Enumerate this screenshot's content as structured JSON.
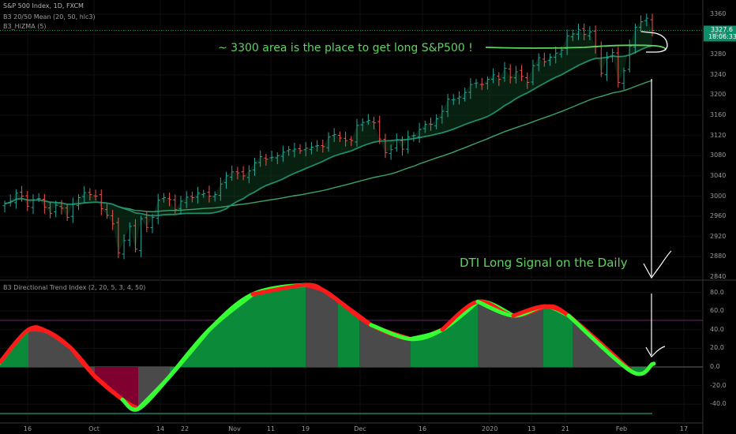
{
  "header": {
    "symbol_line": "S&P 500 Index, 1D, FXCM",
    "indicator_1": "B3 20/50 Mean (20, 50, hlc3)",
    "indicator_2": "B3_HiZMA (5)",
    "oscillator_title": "B3 Directional Trend Index (2, 20, 5, 3, 4, 50)"
  },
  "price_badge": {
    "value": "3327.6",
    "timer": "18:06:33"
  },
  "annotations": {
    "top": "~ 3300 area is the place to get long S&P500 !",
    "bottom": "DTI Long Signal on the Daily"
  },
  "colors": {
    "up_candle": "#26a69a",
    "down_candle": "#ef5350",
    "ma_fast": "#1e8c6a",
    "ma_slow": "#3aa36a",
    "dti_rising": "#33ff33",
    "dti_falling": "#ff1a1a",
    "fill_green": "#0b8a3a",
    "fill_gray": "#4a4a4a",
    "fill_maroon": "#800030",
    "annotation": "#5fd35f",
    "badge": "#0a8f6a"
  },
  "chart_data": [
    {
      "type": "candlestick",
      "title": "S&P 500 Index, 1D, FXCM",
      "ylim": [
        2830,
        3375
      ],
      "y_ticks": [
        3360,
        3320,
        3280,
        3240,
        3200,
        3160,
        3120,
        3080,
        3040,
        3000,
        2960,
        2920,
        2880,
        2840
      ],
      "x_ticks": [
        "16",
        "Oct",
        "14",
        "22",
        "Nov",
        "11",
        "19",
        "Dec",
        "16",
        "2020",
        "13",
        "21",
        "Feb",
        "17"
      ],
      "approx_close": [
        2985,
        2990,
        3006,
        3000,
        2980,
        2992,
        2995,
        2978,
        2966,
        2982,
        2976,
        2958,
        2984,
        2997,
        3007,
        3003,
        3000,
        2975,
        2962,
        2945,
        2888,
        2912,
        2940,
        2895,
        2955,
        2938,
        2958,
        2992,
        2997,
        2993,
        2973,
        2990,
        2998,
        2997,
        3006,
        3005,
        3000,
        3003,
        3024,
        3040,
        3048,
        3046,
        3040,
        3050,
        3066,
        3078,
        3073,
        3077,
        3080,
        3087,
        3092,
        3093,
        3090,
        3095,
        3097,
        3100,
        3098,
        3117,
        3122,
        3115,
        3110,
        3110,
        3140,
        3146,
        3150,
        3145,
        3113,
        3086,
        3092,
        3112,
        3093,
        3117,
        3120,
        3132,
        3142,
        3142,
        3153,
        3168,
        3192,
        3191,
        3196,
        3205,
        3221,
        3224,
        3221,
        3231,
        3240,
        3231,
        3253,
        3235,
        3246,
        3237,
        3225,
        3258,
        3274,
        3266,
        3275,
        3283,
        3289,
        3317,
        3321,
        3329,
        3320,
        3325,
        3295,
        3243,
        3273,
        3284,
        3225,
        3248,
        3297,
        3334,
        3345,
        3352,
        3328
      ],
      "series": [
        {
          "name": "B3 20/50 Mean (20, 50, hlc3)",
          "values_note": "20 and 50 period means"
        },
        {
          "name": "B3_HiZMA (5)"
        }
      ]
    },
    {
      "type": "area",
      "title": "B3 Directional Trend Index (2, 20, 5, 3, 4, 50)",
      "ylim": [
        -50,
        90
      ],
      "y_ticks": [
        80.0,
        60.0,
        40.0,
        20.0,
        0.0,
        -20.0,
        -40.0
      ],
      "approx_x_dates": [
        "Sep 9",
        "Sep 16",
        "Sep 23",
        "Oct 1",
        "Oct 8",
        "Oct 11",
        "Oct 14",
        "Oct 22",
        "Nov 1",
        "Nov 11",
        "Nov 19",
        "Nov 25",
        "Dec 2",
        "Dec 9",
        "Dec 16",
        "Dec 23",
        "Jan 2",
        "Jan 13",
        "Jan 21",
        "Jan 24",
        "Jan 31",
        "Feb 4"
      ],
      "values": [
        5,
        40,
        38,
        20,
        -10,
        -35,
        -45,
        -10,
        40,
        78,
        88,
        82,
        70,
        45,
        30,
        40,
        70,
        55,
        65,
        55,
        -5,
        3
      ]
    }
  ]
}
